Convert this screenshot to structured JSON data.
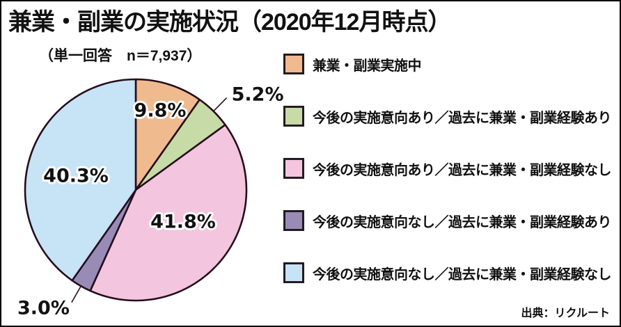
{
  "title": "兼業・副業の実施状況（2020年12月時点）",
  "subtitle": "（単一回答　n＝7,937）",
  "source": "出典：リクルート",
  "chart_data": {
    "type": "pie",
    "title": "兼業・副業の実施状況（2020年12月時点）",
    "subtitle": "（単一回答　n＝7,937）",
    "start_angle_deg": 0,
    "direction": "clockwise",
    "legend_position": "right",
    "outline_color": "#250d1d",
    "label_text_color": "#111111",
    "label_halo_color": "#ffffff",
    "slices": [
      {
        "label": "兼業・副業実施中",
        "value": 9.8,
        "display": "9.8%",
        "color": "#f0ba8f",
        "label_placement": "inside"
      },
      {
        "label": "今後の実施意向あり／過去に兼業・副業経験あり",
        "value": 5.2,
        "display": "5.2%",
        "color": "#c6dba5",
        "label_placement": "outside"
      },
      {
        "label": "今後の実施意向あり／過去に兼業・副業経験なし",
        "value": 41.8,
        "display": "41.8%",
        "color": "#f4c5de",
        "label_placement": "inside"
      },
      {
        "label": "今後の実施意向なし／過去に兼業・副業経験あり",
        "value": 3.0,
        "display": "3.0%",
        "color": "#988bb6",
        "label_placement": "outside"
      },
      {
        "label": "今後の実施意向なし／過去に兼業・副業経験なし",
        "value": 40.3,
        "display": "40.3%",
        "color": "#c7e3f6",
        "label_placement": "inside"
      }
    ]
  }
}
